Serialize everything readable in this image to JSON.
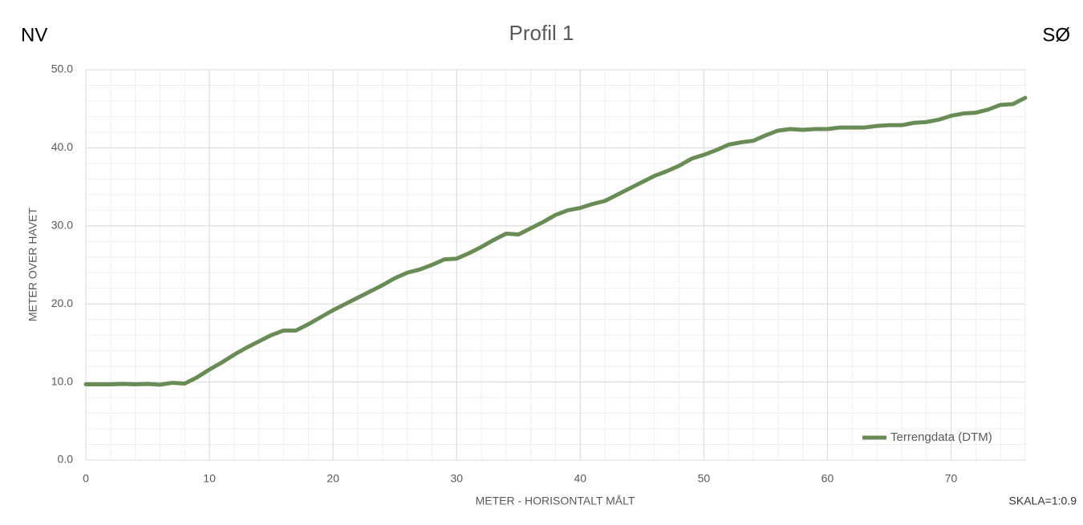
{
  "chart_data": {
    "type": "line",
    "title": "Profil 1",
    "corner_left": "NV",
    "corner_right": "SØ",
    "x_label": "METER - HORISONTALT MÅLT",
    "y_label": "METER OVER HAVET",
    "scale_note": "SKALA=1:0.9",
    "x": [
      0,
      1,
      2,
      3,
      4,
      5,
      6,
      7,
      8,
      9,
      10,
      11,
      12,
      13,
      14,
      15,
      16,
      17,
      18,
      19,
      20,
      21,
      22,
      23,
      24,
      25,
      26,
      27,
      28,
      29,
      30,
      31,
      32,
      33,
      34,
      35,
      36,
      37,
      38,
      39,
      40,
      41,
      42,
      43,
      44,
      45,
      46,
      47,
      48,
      49,
      50,
      51,
      52,
      53,
      54,
      55,
      56,
      57,
      58,
      59,
      60,
      61,
      62,
      63,
      64,
      65,
      66,
      67,
      68,
      69,
      70,
      71,
      72,
      73,
      74,
      75,
      76
    ],
    "series": [
      {
        "name": "Terrengdata (DTM)",
        "color": "#698b55",
        "values": [
          9.7,
          9.7,
          9.7,
          9.75,
          9.7,
          9.75,
          9.65,
          9.9,
          9.8,
          10.6,
          11.6,
          12.5,
          13.5,
          14.4,
          15.2,
          16.0,
          16.6,
          16.6,
          17.4,
          18.3,
          19.2,
          20.0,
          20.8,
          21.6,
          22.4,
          23.3,
          24.0,
          24.4,
          25.0,
          25.7,
          25.8,
          26.5,
          27.3,
          28.2,
          29.0,
          28.9,
          29.7,
          30.5,
          31.4,
          32.0,
          32.3,
          32.8,
          33.2,
          34.0,
          34.8,
          35.6,
          36.4,
          37.0,
          37.7,
          38.6,
          39.1,
          39.7,
          40.4,
          40.7,
          40.9,
          41.6,
          42.2,
          42.4,
          42.3,
          42.4,
          42.4,
          42.6,
          42.6,
          42.6,
          42.8,
          42.9,
          42.9,
          43.2,
          43.3,
          43.6,
          44.1,
          44.4,
          44.5,
          44.9,
          45.5,
          45.6,
          46.4
        ]
      }
    ],
    "xlim": [
      0,
      76
    ],
    "ylim": [
      0,
      50
    ],
    "xticks": [
      0,
      10,
      20,
      30,
      40,
      50,
      60,
      70
    ],
    "yticks": [
      {
        "value": 0,
        "label": "0.0"
      },
      {
        "value": 10,
        "label": "10.0"
      },
      {
        "value": 20,
        "label": "20.0"
      },
      {
        "value": 30,
        "label": "30.0"
      },
      {
        "value": 40,
        "label": "40.0"
      },
      {
        "value": 50,
        "label": "50.0"
      }
    ],
    "grid": true,
    "minor_grid": {
      "x": 2,
      "y": 2
    },
    "legend": "lower right"
  }
}
